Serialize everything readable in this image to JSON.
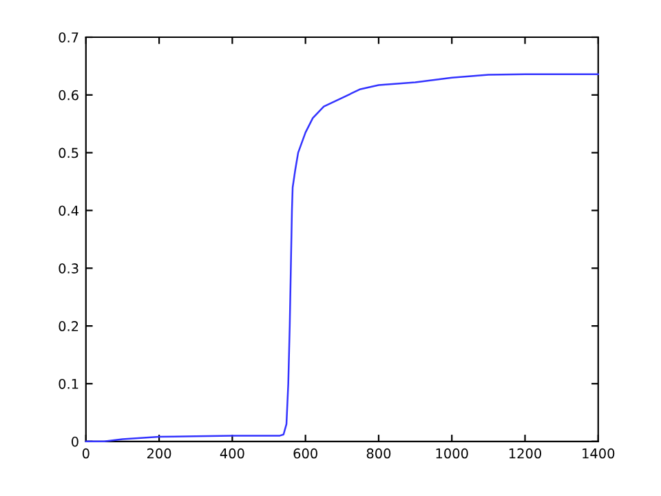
{
  "chart_data": {
    "type": "line",
    "x": [
      0,
      50,
      100,
      150,
      200,
      300,
      400,
      530,
      540,
      548,
      553,
      557,
      560,
      563,
      565,
      572,
      580,
      600,
      620,
      650,
      700,
      750,
      800,
      900,
      1000,
      1100,
      1200,
      1300,
      1400
    ],
    "series": [
      {
        "color": "#3333ff",
        "values": [
          0,
          0,
          0.004,
          0.006,
          0.008,
          0.009,
          0.01,
          0.01,
          0.012,
          0.03,
          0.1,
          0.2,
          0.3,
          0.4,
          0.44,
          0.47,
          0.5,
          0.535,
          0.56,
          0.58,
          0.595,
          0.61,
          0.617,
          0.622,
          0.63,
          0.635,
          0.636,
          0.636,
          0.636
        ]
      }
    ],
    "xlim": [
      0,
      1400
    ],
    "ylim": [
      0,
      0.7
    ],
    "xticks": [
      0,
      200,
      400,
      600,
      800,
      1000,
      1200,
      1400
    ],
    "yticks": [
      0,
      0.1,
      0.2,
      0.3,
      0.4,
      0.5,
      0.6,
      0.7
    ],
    "grid": false,
    "legend": false
  }
}
